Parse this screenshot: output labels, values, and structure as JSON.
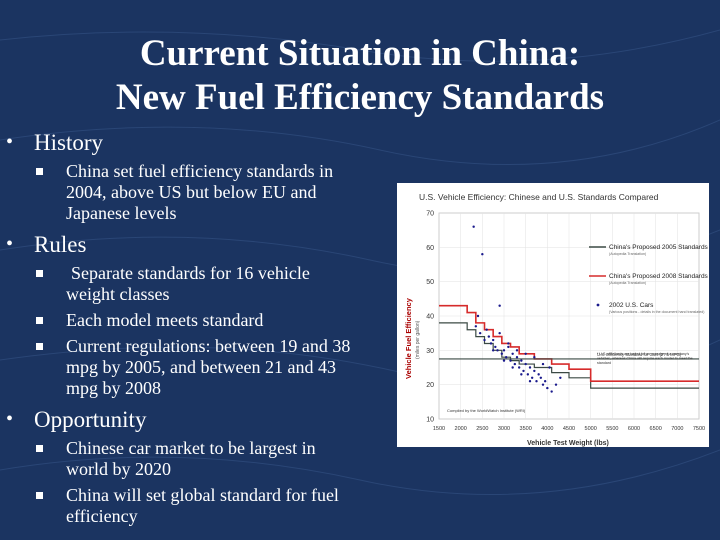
{
  "title": {
    "line1": "Current Situation in China:",
    "line2": "New Fuel Efficiency Standards"
  },
  "outline": {
    "history": {
      "label": "History",
      "points": [
        "China set fuel efficiency standards in",
        "2004, above US but below EU and",
        "Japanese levels"
      ]
    },
    "rules": {
      "label": "Rules",
      "p1": [
        "Separate standards for 16 vehicle",
        "weight classes"
      ],
      "p2": [
        "Each model meets standard"
      ],
      "p3": [
        "Current regulations: between 19 and 38",
        "mpg by 2005, and between 21 and 43",
        "mpg by 2008"
      ]
    },
    "opportunity": {
      "label": "Opportunity",
      "p1": [
        "Chinese car market to be largest in",
        "world by 2020"
      ],
      "p2": [
        "China will set global standard for fuel",
        "efficiency"
      ]
    }
  },
  "chart_data": {
    "type": "line",
    "title": "U.S. Vehicle Efficiency: Chinese and U.S. Standards Compared",
    "xlabel": "Vehicle Test Weight (lbs)",
    "ylabel": "Vehicle Fuel Efficiency",
    "ylabel_sub": "(miles per gallon)",
    "xlim": [
      1500,
      7500
    ],
    "ylim": [
      10,
      70
    ],
    "x_ticks": [
      "1500",
      "2000",
      "2500",
      "3000",
      "3500",
      "4000",
      "4500",
      "5000",
      "5500",
      "6000",
      "6500",
      "7000",
      "7500"
    ],
    "y_ticks": [
      "10",
      "20",
      "30",
      "40",
      "50",
      "60",
      "70"
    ],
    "series": [
      {
        "name": "China's Proposed 2005 Standards",
        "color": "#3b4a44",
        "x": [
          1500,
          2150,
          2150,
          2350,
          2350,
          2550,
          2550,
          2750,
          2750,
          2950,
          2950,
          3150,
          3150,
          3350,
          3350,
          3700,
          3700,
          4100,
          4100,
          4500,
          4500,
          5000,
          5000,
          7500
        ],
        "y": [
          38,
          38,
          36,
          36,
          34,
          34,
          32,
          32,
          30,
          30,
          28,
          28,
          27,
          27,
          26,
          26,
          25,
          25,
          23.5,
          23.5,
          22,
          22,
          19,
          19
        ]
      },
      {
        "name": "China's Proposed 2008 Standards",
        "color": "#d62b2b",
        "x": [
          1500,
          2150,
          2150,
          2350,
          2350,
          2550,
          2550,
          2750,
          2750,
          2950,
          2950,
          3150,
          3150,
          3350,
          3350,
          3700,
          3700,
          4100,
          4100,
          4500,
          4500,
          5000,
          5000,
          7500
        ],
        "y": [
          43,
          43,
          41,
          41,
          38,
          38,
          36,
          36,
          34,
          34,
          32,
          32,
          31,
          31,
          29,
          29,
          27.5,
          27.5,
          26,
          26,
          24.5,
          24.5,
          21,
          21
        ]
      },
      {
        "name": "U.S. Efficiency Standard for Cars (27.5 MPG)",
        "color": "#3b4a44",
        "x": [
          1500,
          7500
        ],
        "y": [
          27.5,
          27.5
        ]
      }
    ],
    "scatter": {
      "name": "2002 U.S. Cars",
      "color": "#1a1a8c",
      "x": [
        2350,
        2400,
        2450,
        2550,
        2600,
        2650,
        2700,
        2750,
        2800,
        2850,
        2900,
        2950,
        3000,
        3050,
        3100,
        3150,
        3200,
        3250,
        3300,
        3350,
        3400,
        3450,
        3500,
        3550,
        3600,
        3650,
        3700,
        3750,
        3800,
        3850,
        3900,
        3950,
        4000,
        4100,
        4200,
        2300,
        2500,
        2900,
        3100,
        3300,
        3500,
        3700,
        3900,
        4050,
        4300,
        2750,
        3000,
        3200,
        3400,
        3600
      ],
      "y": [
        37,
        40,
        35,
        33,
        36,
        34,
        32,
        33,
        31,
        30,
        35,
        29,
        30,
        28,
        31,
        27,
        29,
        26,
        28,
        25,
        27,
        24,
        26,
        23,
        25,
        22,
        24,
        21,
        23,
        22,
        20,
        21,
        19,
        18,
        20,
        66,
        58,
        43,
        32,
        30,
        29,
        28,
        26,
        25,
        22,
        30,
        27,
        25,
        23,
        21
      ]
    },
    "legend": [
      {
        "label": "China's Proposed 2005 Standards",
        "note": "(Autopedia Translation)"
      },
      {
        "label": "China's Proposed 2008 Standards",
        "note": "(Autopedia Translation)"
      },
      {
        "label": "2002 U.S. Cars",
        "note": "(Various positions - details in the document hand translated)"
      }
    ],
    "annotations": [
      "U.S. Efficiency Standard for Cars (27.5 MPG)",
      "* U.S. standards are based on an average of a company's vehicles, whereas China will require each model to meet the standard",
      "Compiled by the WorldWatch Institute (WRI)"
    ]
  }
}
